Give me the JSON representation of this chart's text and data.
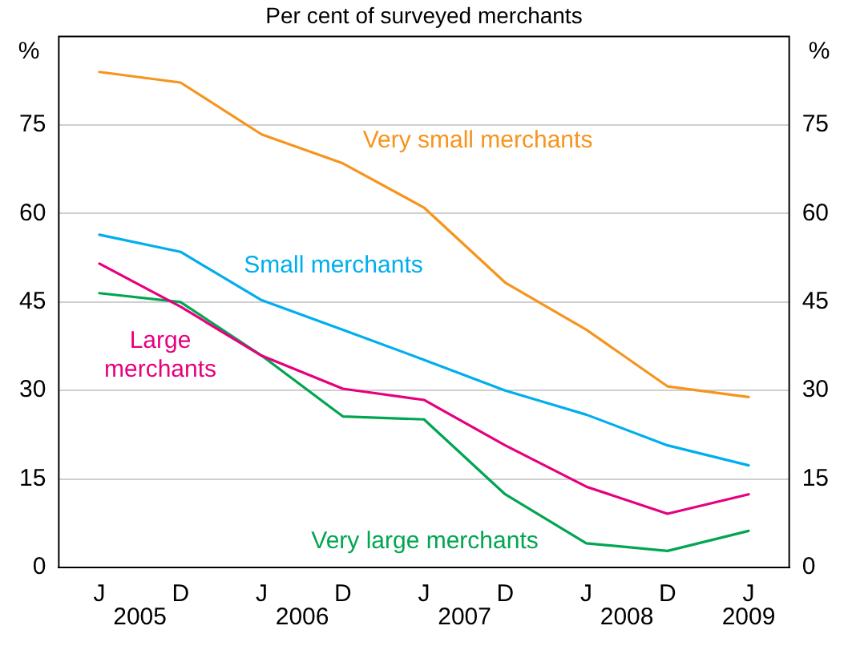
{
  "chart_data": {
    "type": "line",
    "title": "Per cent of surveyed merchants",
    "ylabel": "%",
    "y2label": "%",
    "categories": [
      "J",
      "D",
      "J",
      "D",
      "J",
      "D",
      "J",
      "D",
      "J"
    ],
    "series": [
      {
        "name": "Very small merchants",
        "color": "#f7941d",
        "values": [
          84.0,
          82.2,
          73.4,
          68.5,
          61.0,
          48.3,
          40.3,
          30.7,
          28.9
        ]
      },
      {
        "name": "Small merchants",
        "color": "#00aeef",
        "values": [
          56.4,
          53.5,
          45.3,
          40.3,
          35.2,
          30.0,
          25.9,
          20.7,
          17.3
        ]
      },
      {
        "name": "Large merchants",
        "color": "#e6007e",
        "values": [
          51.5,
          44.2,
          35.9,
          30.3,
          28.4,
          20.7,
          13.7,
          9.1,
          12.4
        ]
      },
      {
        "name": "Very large merchants",
        "color": "#00a651",
        "values": [
          46.5,
          45.0,
          35.9,
          25.6,
          25.1,
          12.4,
          4.1,
          2.8,
          6.2
        ]
      }
    ],
    "ylim": [
      0,
      90
    ],
    "yticks": [
      0,
      15,
      30,
      45,
      60,
      75
    ],
    "y2lim": [
      0,
      90
    ],
    "y2ticks": [
      0,
      15,
      30,
      45,
      60,
      75
    ],
    "annotations": [
      "2005",
      "2006",
      "2007",
      "2008",
      "2009"
    ],
    "grid": "y",
    "legend": false,
    "marker": "none",
    "line_style": "solid"
  }
}
